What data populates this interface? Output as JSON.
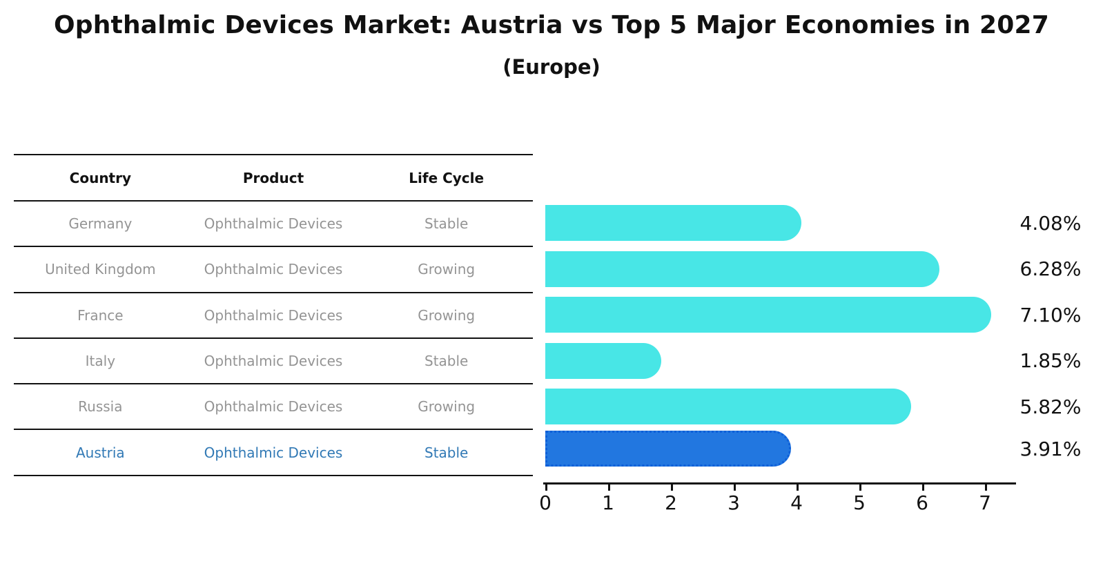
{
  "page": {
    "title": "Ophthalmic Devices Market: Austria vs Top 5 Major Economies in 2027",
    "subtitle": "(Europe)"
  },
  "table": {
    "headers": [
      "Country",
      "Product",
      "Life Cycle"
    ],
    "rows": [
      {
        "country": "Germany",
        "product": "Ophthalmic Devices",
        "life_cycle": "Stable",
        "highlight": false
      },
      {
        "country": "United Kingdom",
        "product": "Ophthalmic Devices",
        "life_cycle": "Growing",
        "highlight": false
      },
      {
        "country": "France",
        "product": "Ophthalmic Devices",
        "life_cycle": "Growing",
        "highlight": false
      },
      {
        "country": "Italy",
        "product": "Ophthalmic Devices",
        "life_cycle": "Stable",
        "highlight": false
      },
      {
        "country": "Russia",
        "product": "Ophthalmic Devices",
        "life_cycle": "Growing",
        "highlight": false
      },
      {
        "country": "Austria",
        "product": "Ophthalmic Devices",
        "life_cycle": "Stable",
        "highlight": true
      }
    ]
  },
  "chart_data": {
    "type": "bar",
    "orientation": "horizontal",
    "title": "Ophthalmic Devices Market: Austria vs Top 5 Major Economies in 2027 (Europe)",
    "categories": [
      "Germany",
      "United Kingdom",
      "France",
      "Italy",
      "Russia",
      "Austria"
    ],
    "values": [
      4.08,
      6.28,
      7.1,
      1.85,
      5.82,
      3.91
    ],
    "value_labels": [
      "4.08%",
      "6.28%",
      "7.10%",
      "1.85%",
      "5.82%",
      "3.91%"
    ],
    "highlight_index": 5,
    "xlabel": "",
    "ylabel": "",
    "xticks": [
      0,
      1,
      2,
      3,
      4,
      5,
      6,
      7
    ],
    "xlim": [
      0,
      7.5
    ],
    "grid": false,
    "legend": "none",
    "colors": {
      "bar": "#48E6E6",
      "highlight_bar": "#2277E0",
      "highlight_border": "#0E5FD8",
      "row_text": "#949494",
      "highlight_text": "#3179B5",
      "axis": "#111111"
    }
  }
}
